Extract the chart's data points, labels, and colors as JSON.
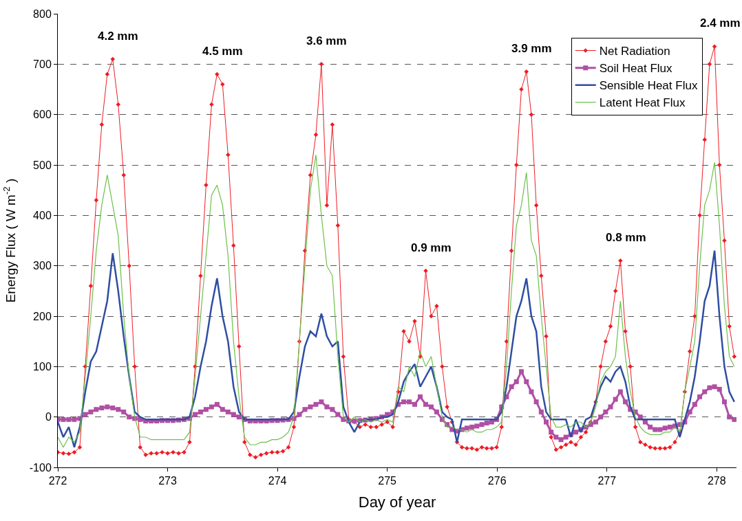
{
  "chart_data": {
    "type": "line",
    "xlabel": "Day of year",
    "ylabel": "Energy Flux ( W m$^{-2}$ )",
    "x": [
      272.0,
      272.05,
      272.1,
      272.15,
      272.2,
      272.25,
      272.3,
      272.35,
      272.4,
      272.45,
      272.5,
      272.55,
      272.6,
      272.65,
      272.7,
      272.75,
      272.8,
      272.85,
      272.9,
      272.95,
      273.0,
      273.05,
      273.1,
      273.15,
      273.2,
      273.25,
      273.3,
      273.35,
      273.4,
      273.45,
      273.5,
      273.55,
      273.6,
      273.65,
      273.7,
      273.75,
      273.8,
      273.85,
      273.9,
      273.95,
      274.0,
      274.05,
      274.1,
      274.15,
      274.2,
      274.25,
      274.3,
      274.35,
      274.4,
      274.45,
      274.5,
      274.55,
      274.6,
      274.65,
      274.7,
      274.75,
      274.8,
      274.85,
      274.9,
      274.95,
      275.0,
      275.05,
      275.1,
      275.15,
      275.2,
      275.25,
      275.3,
      275.35,
      275.4,
      275.45,
      275.5,
      275.545,
      275.59,
      275.635,
      275.68,
      275.725,
      275.771,
      275.816,
      275.861,
      275.906,
      275.951,
      275.996,
      276.041,
      276.086,
      276.131,
      276.176,
      276.221,
      276.267,
      276.312,
      276.357,
      276.402,
      276.447,
      276.492,
      276.537,
      276.582,
      276.627,
      276.672,
      276.717,
      276.763,
      276.808,
      276.853,
      276.898,
      276.943,
      276.988,
      277.033,
      277.078,
      277.123,
      277.168,
      277.213,
      277.259,
      277.304,
      277.349,
      277.394,
      277.439,
      277.484,
      277.529,
      277.574,
      277.619,
      277.664,
      277.709,
      277.755,
      277.8,
      277.845,
      277.89,
      277.935,
      277.98,
      278.025,
      278.07,
      278.115,
      278.16
    ],
    "series": [
      {
        "name": "Net Radiation",
        "color": "#ee1c24",
        "marker": "diamond",
        "values": [
          -70,
          -72,
          -73,
          -70,
          -60,
          100,
          260,
          430,
          580,
          680,
          710,
          620,
          480,
          300,
          100,
          -60,
          -75,
          -72,
          -72,
          -70,
          -72,
          -70,
          -72,
          -70,
          -50,
          100,
          280,
          460,
          620,
          680,
          660,
          520,
          340,
          140,
          -50,
          -75,
          -80,
          -75,
          -72,
          -70,
          -70,
          -68,
          -60,
          -20,
          150,
          330,
          480,
          560,
          700,
          420,
          580,
          380,
          120,
          -5,
          -10,
          -20,
          -15,
          -20,
          -20,
          -15,
          -10,
          -20,
          50,
          170,
          150,
          190,
          120,
          290,
          200,
          220,
          100,
          20,
          -10,
          -50,
          -60,
          -62,
          -62,
          -65,
          -60,
          -62,
          -62,
          -60,
          -20,
          150,
          330,
          500,
          650,
          685,
          600,
          420,
          280,
          160,
          -40,
          -65,
          -60,
          -55,
          -50,
          -55,
          -40,
          -30,
          -10,
          30,
          100,
          150,
          180,
          250,
          310,
          170,
          100,
          -20,
          -50,
          -55,
          -60,
          -62,
          -62,
          -62,
          -60,
          -50,
          -30,
          50,
          130,
          200,
          400,
          550,
          700,
          735,
          500,
          350,
          180,
          120
        ]
      },
      {
        "name": "Soil Heat Flux",
        "color": "#b04fa4",
        "marker": "square",
        "values": [
          -5,
          -5,
          -5,
          -5,
          -3,
          5,
          10,
          15,
          18,
          20,
          18,
          15,
          10,
          0,
          -3,
          -5,
          -8,
          -8,
          -8,
          -7,
          -7,
          -7,
          -6,
          -5,
          -3,
          5,
          10,
          15,
          20,
          25,
          15,
          10,
          5,
          0,
          -5,
          -8,
          -8,
          -8,
          -8,
          -7,
          -7,
          -6,
          -5,
          -3,
          5,
          15,
          20,
          25,
          30,
          20,
          15,
          5,
          -5,
          -8,
          -8,
          -7,
          -6,
          -5,
          -3,
          0,
          5,
          10,
          25,
          30,
          30,
          25,
          40,
          25,
          20,
          10,
          -5,
          -15,
          -25,
          -28,
          -25,
          -22,
          -20,
          -18,
          -15,
          -12,
          -10,
          -5,
          20,
          40,
          60,
          70,
          90,
          70,
          50,
          30,
          10,
          -10,
          -30,
          -40,
          -45,
          -40,
          -35,
          -30,
          -25,
          -20,
          -15,
          -10,
          0,
          10,
          20,
          35,
          50,
          30,
          15,
          10,
          0,
          -10,
          -20,
          -25,
          -25,
          -22,
          -20,
          -18,
          -15,
          -10,
          10,
          25,
          40,
          50,
          58,
          60,
          55,
          30,
          0,
          -5
        ]
      },
      {
        "name": "Sensible Heat Flux",
        "color": "#2e4ea2",
        "marker": "none",
        "values": [
          -10,
          -40,
          -20,
          -60,
          -20,
          50,
          110,
          130,
          180,
          230,
          325,
          250,
          160,
          80,
          10,
          0,
          -5,
          -5,
          -5,
          -5,
          -5,
          -5,
          -5,
          -5,
          0,
          40,
          100,
          150,
          220,
          275,
          200,
          150,
          60,
          10,
          -5,
          -5,
          -5,
          -5,
          -5,
          -5,
          -5,
          -5,
          -5,
          10,
          80,
          140,
          170,
          160,
          205,
          160,
          140,
          150,
          20,
          -10,
          -30,
          -10,
          -5,
          -5,
          -5,
          0,
          0,
          5,
          30,
          70,
          90,
          105,
          60,
          80,
          100,
          60,
          10,
          0,
          -5,
          -50,
          -5,
          -5,
          -5,
          -5,
          -5,
          -5,
          -5,
          -5,
          10,
          60,
          130,
          200,
          230,
          275,
          200,
          170,
          60,
          10,
          -5,
          -5,
          -5,
          -5,
          -40,
          -5,
          -30,
          -5,
          0,
          30,
          60,
          80,
          70,
          90,
          100,
          70,
          20,
          -5,
          -5,
          -5,
          -5,
          -5,
          -5,
          -5,
          -5,
          -5,
          -40,
          -5,
          30,
          80,
          150,
          230,
          260,
          330,
          200,
          100,
          50,
          30
        ]
      },
      {
        "name": "Latent Heat Flux",
        "color": "#6cc04a",
        "marker": "none",
        "values": [
          -40,
          -60,
          -40,
          -50,
          -30,
          80,
          200,
          330,
          420,
          480,
          420,
          360,
          200,
          80,
          0,
          -40,
          -40,
          -45,
          -45,
          -45,
          -45,
          -45,
          -45,
          -45,
          -30,
          80,
          200,
          320,
          440,
          460,
          420,
          320,
          150,
          40,
          -40,
          -55,
          -55,
          -50,
          -50,
          -45,
          -45,
          -40,
          -30,
          0,
          150,
          300,
          450,
          520,
          400,
          300,
          280,
          120,
          0,
          -10,
          0,
          -10,
          -5,
          -10,
          -5,
          -10,
          -5,
          -10,
          60,
          50,
          100,
          80,
          130,
          100,
          120,
          60,
          0,
          -20,
          -20,
          -25,
          -25,
          -30,
          -25,
          -30,
          -30,
          -25,
          -25,
          -20,
          -10,
          100,
          250,
          380,
          420,
          485,
          350,
          320,
          200,
          100,
          0,
          -20,
          -20,
          -15,
          -20,
          -10,
          -10,
          -20,
          -10,
          20,
          70,
          90,
          100,
          120,
          230,
          120,
          50,
          0,
          -20,
          -30,
          -35,
          -35,
          -35,
          -30,
          -30,
          -20,
          -30,
          50,
          100,
          150,
          300,
          420,
          450,
          505,
          380,
          220,
          120,
          100
        ]
      }
    ],
    "xlim": [
      272,
      278.18
    ],
    "xticks": [
      272,
      273,
      274,
      275,
      276,
      277,
      278
    ],
    "ylim": [
      -100,
      800
    ],
    "yticks": [
      -100,
      0,
      100,
      200,
      300,
      400,
      500,
      600,
      700,
      800
    ],
    "grid": "y",
    "legend": "top right",
    "annotations": [
      "4.2 mm",
      "4.5 mm",
      "3.6 mm",
      "0.9 mm",
      "3.9 mm",
      "0.8 mm",
      "2.4 mm"
    ]
  }
}
